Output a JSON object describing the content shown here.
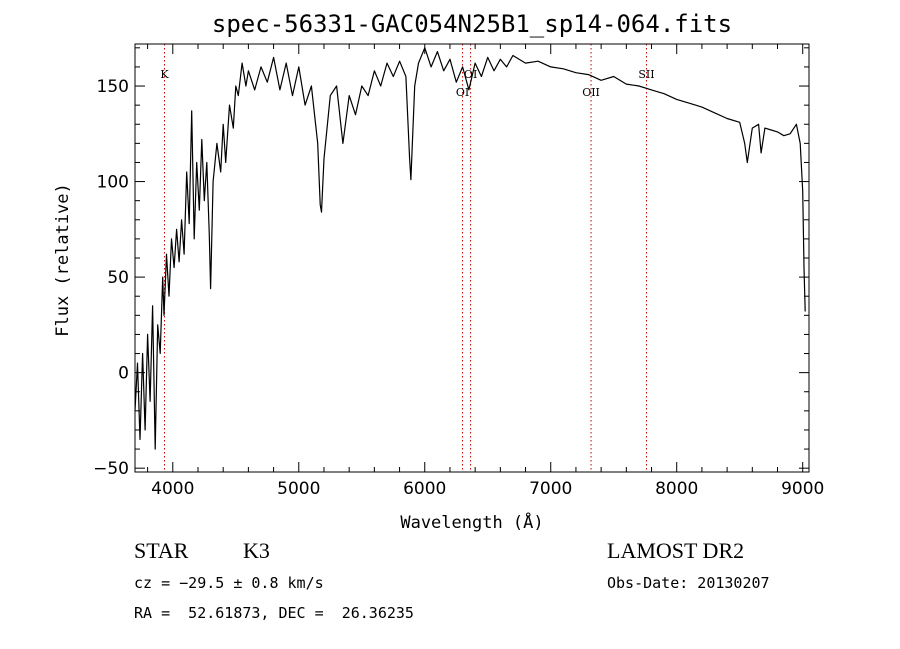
{
  "chart_data": {
    "type": "line",
    "title": "spec-56331-GAC054N25B1_sp14-064.fits",
    "xlabel": "Wavelength (Å)",
    "ylabel": "Flux (relative)",
    "xlim": [
      3700,
      9050
    ],
    "ylim": [
      -52,
      172
    ],
    "x_ticks": [
      4000,
      5000,
      6000,
      7000,
      8000,
      9000
    ],
    "y_ticks": [
      -50,
      0,
      50,
      100,
      150
    ],
    "series": [
      {
        "points": [
          [
            3700,
            -20
          ],
          [
            3720,
            5
          ],
          [
            3740,
            -35
          ],
          [
            3760,
            10
          ],
          [
            3780,
            -30
          ],
          [
            3800,
            20
          ],
          [
            3820,
            -15
          ],
          [
            3840,
            35
          ],
          [
            3860,
            -40
          ],
          [
            3880,
            25
          ],
          [
            3900,
            10
          ],
          [
            3920,
            50
          ],
          [
            3930,
            30
          ],
          [
            3950,
            62
          ],
          [
            3970,
            40
          ],
          [
            3990,
            70
          ],
          [
            4010,
            55
          ],
          [
            4030,
            75
          ],
          [
            4050,
            58
          ],
          [
            4070,
            80
          ],
          [
            4090,
            62
          ],
          [
            4110,
            105
          ],
          [
            4130,
            78
          ],
          [
            4150,
            137
          ],
          [
            4170,
            70
          ],
          [
            4190,
            110
          ],
          [
            4210,
            85
          ],
          [
            4230,
            122
          ],
          [
            4250,
            90
          ],
          [
            4270,
            110
          ],
          [
            4290,
            72
          ],
          [
            4300,
            44
          ],
          [
            4320,
            100
          ],
          [
            4350,
            120
          ],
          [
            4380,
            105
          ],
          [
            4400,
            130
          ],
          [
            4420,
            110
          ],
          [
            4450,
            140
          ],
          [
            4480,
            128
          ],
          [
            4500,
            150
          ],
          [
            4520,
            145
          ],
          [
            4550,
            162
          ],
          [
            4580,
            150
          ],
          [
            4600,
            158
          ],
          [
            4650,
            148
          ],
          [
            4700,
            160
          ],
          [
            4750,
            152
          ],
          [
            4800,
            165
          ],
          [
            4850,
            148
          ],
          [
            4900,
            162
          ],
          [
            4950,
            145
          ],
          [
            5000,
            160
          ],
          [
            5050,
            140
          ],
          [
            5100,
            150
          ],
          [
            5150,
            120
          ],
          [
            5170,
            88
          ],
          [
            5180,
            84
          ],
          [
            5200,
            112
          ],
          [
            5250,
            145
          ],
          [
            5300,
            150
          ],
          [
            5350,
            120
          ],
          [
            5400,
            145
          ],
          [
            5450,
            135
          ],
          [
            5500,
            150
          ],
          [
            5550,
            145
          ],
          [
            5600,
            158
          ],
          [
            5650,
            150
          ],
          [
            5700,
            162
          ],
          [
            5750,
            155
          ],
          [
            5800,
            163
          ],
          [
            5850,
            155
          ],
          [
            5880,
            112
          ],
          [
            5890,
            101
          ],
          [
            5900,
            118
          ],
          [
            5920,
            150
          ],
          [
            5950,
            162
          ],
          [
            6000,
            170
          ],
          [
            6050,
            160
          ],
          [
            6100,
            168
          ],
          [
            6150,
            158
          ],
          [
            6200,
            164
          ],
          [
            6250,
            152
          ],
          [
            6300,
            160
          ],
          [
            6350,
            148
          ],
          [
            6400,
            162
          ],
          [
            6450,
            155
          ],
          [
            6500,
            165
          ],
          [
            6550,
            158
          ],
          [
            6600,
            164
          ],
          [
            6650,
            160
          ],
          [
            6700,
            166
          ],
          [
            6800,
            162
          ],
          [
            6900,
            163
          ],
          [
            7000,
            160
          ],
          [
            7100,
            159
          ],
          [
            7200,
            157
          ],
          [
            7300,
            156
          ],
          [
            7400,
            153
          ],
          [
            7500,
            155
          ],
          [
            7600,
            151
          ],
          [
            7700,
            150
          ],
          [
            7800,
            148
          ],
          [
            7900,
            146
          ],
          [
            8000,
            143
          ],
          [
            8100,
            141
          ],
          [
            8200,
            139
          ],
          [
            8300,
            136
          ],
          [
            8400,
            133
          ],
          [
            8500,
            131
          ],
          [
            8540,
            120
          ],
          [
            8560,
            110
          ],
          [
            8600,
            128
          ],
          [
            8650,
            130
          ],
          [
            8670,
            115
          ],
          [
            8700,
            128
          ],
          [
            8750,
            127
          ],
          [
            8800,
            126
          ],
          [
            8850,
            124
          ],
          [
            8900,
            125
          ],
          [
            8950,
            130
          ],
          [
            8980,
            120
          ],
          [
            9000,
            95
          ],
          [
            9010,
            55
          ],
          [
            9020,
            32
          ]
        ]
      }
    ],
    "spectral_lines": [
      {
        "label": "K",
        "x": 3934
      },
      {
        "label": "OI",
        "x": 6300
      },
      {
        "label": "OI",
        "x": 6364
      },
      {
        "label": "OII",
        "x": 7320
      },
      {
        "label": "SII",
        "x": 7760
      }
    ],
    "grid": false,
    "legend": "none",
    "line_color": "#000000",
    "marker_line_color": "#cc0000"
  },
  "info": {
    "object_class": "STAR",
    "subclass": "K3",
    "survey": "LAMOST DR2",
    "cz": "cz = −29.5 ± 0.8 km/s",
    "obs_date": "Obs-Date: 20130207",
    "radec": "RA =  52.61873, DEC =  26.36235"
  }
}
